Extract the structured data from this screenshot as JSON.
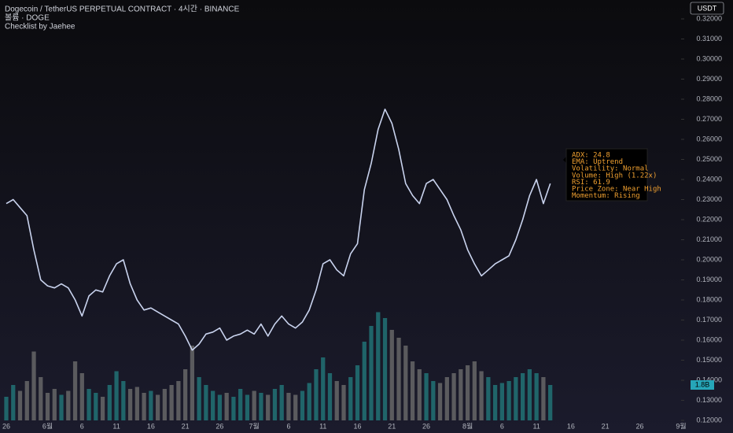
{
  "chart_data": {
    "type": "line",
    "title": "Dogecoin / TetherUS PERPETUAL CONTRACT · 4시간 · BINANCE",
    "subtitles": [
      "볼륨 · DOGE",
      "Checklist by Jaehee"
    ],
    "currency": "USDT",
    "color": "#c9d3ee",
    "categories": [
      "26",
      null,
      null,
      null,
      null,
      null,
      "6월",
      null,
      null,
      null,
      null,
      "6",
      null,
      null,
      null,
      null,
      "11",
      null,
      null,
      null,
      null,
      "16",
      null,
      null,
      null,
      null,
      "21",
      null,
      null,
      null,
      null,
      "26",
      null,
      null,
      null,
      null,
      "7월",
      null,
      null,
      null,
      null,
      "6",
      null,
      null,
      null,
      null,
      "11",
      null,
      null,
      null,
      null,
      "16",
      null,
      null,
      null,
      null,
      "21",
      null,
      null,
      null,
      null,
      "26",
      null,
      null,
      null,
      null,
      null,
      "8월",
      null,
      null,
      null,
      null,
      "6",
      null,
      null,
      null,
      null,
      "11",
      null,
      null,
      null,
      null,
      "16",
      null,
      null,
      null,
      null,
      "21",
      null,
      null,
      null,
      null,
      "26",
      null,
      null,
      null,
      null,
      null,
      "9월"
    ],
    "values": [
      0.228,
      0.23,
      0.226,
      0.222,
      0.205,
      0.19,
      0.187,
      0.186,
      0.188,
      0.186,
      0.18,
      0.172,
      0.182,
      0.185,
      0.184,
      0.192,
      0.198,
      0.2,
      0.188,
      0.18,
      0.175,
      0.176,
      0.174,
      0.172,
      0.17,
      0.168,
      0.162,
      0.155,
      0.158,
      0.163,
      0.164,
      0.166,
      0.16,
      0.162,
      0.163,
      0.165,
      0.163,
      0.168,
      0.162,
      0.168,
      0.172,
      0.168,
      0.166,
      0.169,
      0.175,
      0.185,
      0.198,
      0.2,
      0.195,
      0.192,
      0.203,
      0.208,
      0.235,
      0.248,
      0.265,
      0.275,
      0.268,
      0.255,
      0.238,
      0.232,
      0.228,
      0.238,
      0.24,
      0.235,
      0.23,
      0.222,
      0.215,
      0.205,
      0.198,
      0.192,
      0.195,
      0.198,
      0.2,
      0.202,
      0.21,
      0.22,
      0.232,
      0.24,
      0.228,
      0.238,
      null,
      null,
      null,
      null,
      null,
      null,
      null,
      null,
      null,
      null,
      null,
      null,
      null,
      null,
      null,
      null,
      null,
      null,
      null
    ],
    "volume": {
      "up_color": "#22787a",
      "down_color": "#6b6b6b",
      "values": [
        1.2,
        1.8,
        1.5,
        2.0,
        3.5,
        2.2,
        1.4,
        1.6,
        1.3,
        1.5,
        3.0,
        2.4,
        1.6,
        1.4,
        1.2,
        1.8,
        2.5,
        2.0,
        1.6,
        1.7,
        1.4,
        1.5,
        1.3,
        1.6,
        1.8,
        2.0,
        2.6,
        3.8,
        2.2,
        1.8,
        1.5,
        1.3,
        1.4,
        1.2,
        1.6,
        1.3,
        1.5,
        1.4,
        1.3,
        1.6,
        1.8,
        1.4,
        1.3,
        1.5,
        1.9,
        2.6,
        3.2,
        2.4,
        2.0,
        1.8,
        2.2,
        2.8,
        4.0,
        4.8,
        5.5,
        5.2,
        4.6,
        4.2,
        3.8,
        3.0,
        2.6,
        2.4,
        2.0,
        1.9,
        2.2,
        2.4,
        2.6,
        2.8,
        3.0,
        2.5,
        2.2,
        1.8,
        1.9,
        2.0,
        2.2,
        2.4,
        2.6,
        2.4,
        2.2,
        1.8,
        null,
        null,
        null,
        null,
        null,
        null,
        null,
        null,
        null,
        null,
        null,
        null,
        null,
        null,
        null,
        null,
        null,
        null,
        null
      ],
      "marker": {
        "value": 1.8,
        "label": "1.8B"
      }
    },
    "ylim": [
      0.12,
      0.32
    ],
    "yticks": [
      {
        "value": 0.12,
        "label": "0.12000"
      },
      {
        "value": 0.13,
        "label": "0.13000"
      },
      {
        "value": 0.14,
        "label": "0.14000"
      },
      {
        "value": 0.15,
        "label": "0.15000"
      },
      {
        "value": 0.16,
        "label": "0.16000"
      },
      {
        "value": 0.17,
        "label": "0.17000"
      },
      {
        "value": 0.18,
        "label": "0.18000"
      },
      {
        "value": 0.19,
        "label": "0.19000"
      },
      {
        "value": 0.2,
        "label": "0.20000"
      },
      {
        "value": 0.21,
        "label": "0.21000"
      },
      {
        "value": 0.22,
        "label": "0.22000"
      },
      {
        "value": 0.23,
        "label": "0.23000"
      },
      {
        "value": 0.24,
        "label": "0.24000"
      },
      {
        "value": 0.25,
        "label": "0.25000"
      },
      {
        "value": 0.26,
        "label": "0.26000"
      },
      {
        "value": 0.27,
        "label": "0.27000"
      },
      {
        "value": 0.28,
        "label": "0.28000"
      },
      {
        "value": 0.29,
        "label": "0.29000"
      },
      {
        "value": 0.3,
        "label": "0.30000"
      },
      {
        "value": 0.31,
        "label": "0.31000"
      },
      {
        "value": 0.32,
        "label": "0.32000"
      }
    ],
    "checklist": [
      "ADX: 24.8",
      "EMA: Uptrend",
      "Volatility: Normal",
      "Volume: High (1.22x)",
      "RSI: 61.9",
      "Price Zone: Near High",
      "Momentum: Rising"
    ]
  }
}
